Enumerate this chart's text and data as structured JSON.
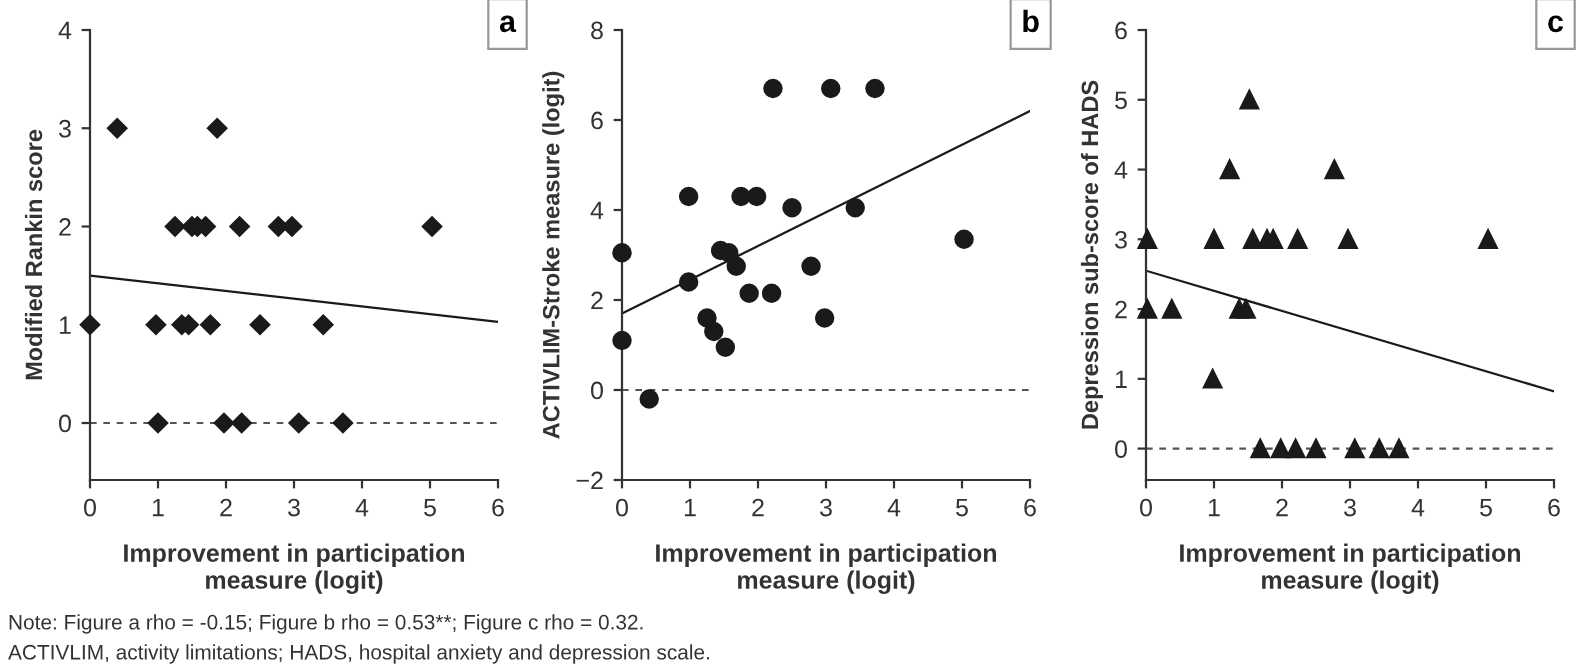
{
  "chart_data": [
    {
      "type": "scatter",
      "xlabel": "Improvement in participation\nmeasure (logit)",
      "ylabel": "Modified Rankin score",
      "xlim": [
        0,
        6
      ],
      "xticks": [
        0,
        1,
        2,
        3,
        4,
        5,
        6
      ],
      "ylim": [
        -0.58,
        4
      ],
      "yticks": [
        0,
        1,
        2,
        3,
        4
      ],
      "grid": false,
      "annotations": [
        "a",
        "Note: Figure a rho = -0.15; Figure b rho = 0.53**; Figure c rho = 0.32.",
        "ACTIVLIM, activity limitations; HADS, hospital anxiety and depression scale."
      ],
      "ref_lines": [
        {
          "axis": "y",
          "value": 0,
          "color": "#555555",
          "line_style": "dashed"
        }
      ],
      "series": [
        {
          "marker": "diamond",
          "color": "#1a1a1a",
          "x": [
            0,
            0.4,
            0.97,
            1.0,
            1.25,
            1.35,
            1.45,
            1.5,
            1.58,
            1.7,
            1.77,
            1.87,
            1.97,
            2.2,
            2.23,
            2.5,
            2.77,
            2.97,
            3.07,
            3.43,
            3.72,
            5.03
          ],
          "values": [
            1,
            3,
            1,
            0,
            2,
            1,
            1,
            2,
            2,
            2,
            1,
            3,
            0,
            2,
            0,
            1,
            2,
            2,
            0,
            1,
            0,
            2
          ]
        },
        {
          "type": "line",
          "marker": "none",
          "color": "#1a1a1a",
          "x": [
            0,
            6
          ],
          "values": [
            1.5,
            1.03
          ]
        }
      ]
    },
    {
      "type": "scatter",
      "xlabel": "Improvement in participation\nmeasure (logit)",
      "ylabel": "ACTIVLIM-Stroke measure (logit)",
      "xlim": [
        0,
        6
      ],
      "xticks": [
        0,
        1,
        2,
        3,
        4,
        5,
        6
      ],
      "ylim": [
        -2,
        8
      ],
      "yticks": [
        {
          "value": -2,
          "label": "−2"
        },
        0,
        2,
        4,
        6,
        8
      ],
      "grid": false,
      "annotations": [
        "b"
      ],
      "ref_lines": [
        {
          "axis": "y",
          "value": 0,
          "color": "#555555",
          "line_style": "dashed"
        }
      ],
      "series": [
        {
          "marker": "circle",
          "color": "#1a1a1a",
          "x": [
            0,
            0,
            0.4,
            0.98,
            0.98,
            1.25,
            1.35,
            1.45,
            1.52,
            1.57,
            1.68,
            1.75,
            1.87,
            1.98,
            2.2,
            2.22,
            2.5,
            2.78,
            2.98,
            3.07,
            3.43,
            3.72,
            5.03
          ],
          "values": [
            3.05,
            1.1,
            -0.2,
            4.3,
            2.4,
            1.6,
            1.3,
            3.1,
            0.95,
            3.05,
            2.75,
            4.3,
            2.15,
            4.3,
            2.15,
            6.7,
            4.05,
            2.75,
            1.6,
            6.7,
            4.05,
            6.7,
            3.35
          ]
        },
        {
          "type": "line",
          "marker": "none",
          "color": "#1a1a1a",
          "x": [
            0,
            6
          ],
          "values": [
            1.7,
            6.2
          ]
        }
      ]
    },
    {
      "type": "scatter",
      "xlabel": "Improvement in participation\nmeasure (logit)",
      "ylabel": "Depression sub-score of HADS",
      "xlim": [
        0,
        6
      ],
      "xticks": [
        0,
        1,
        2,
        3,
        4,
        5,
        6
      ],
      "ylim": [
        -0.45,
        6
      ],
      "yticks": [
        0,
        1,
        2,
        3,
        4,
        5,
        6
      ],
      "grid": false,
      "annotations": [
        "c"
      ],
      "ref_lines": [
        {
          "axis": "y",
          "value": 0,
          "color": "#555555",
          "line_style": "dashed"
        }
      ],
      "series": [
        {
          "marker": "triangle",
          "color": "#1a1a1a",
          "x": [
            0.02,
            0.02,
            0.38,
            0.98,
            1.0,
            1.23,
            1.37,
            1.47,
            1.52,
            1.57,
            1.68,
            1.78,
            1.87,
            1.98,
            2.2,
            2.23,
            2.5,
            2.77,
            2.97,
            3.07,
            3.43,
            3.72,
            5.03
          ],
          "values": [
            3,
            2,
            2,
            1,
            3,
            4,
            2,
            2,
            5,
            3,
            0,
            3,
            3,
            0,
            0,
            3,
            0,
            4,
            3,
            0,
            0,
            0,
            3
          ]
        },
        {
          "type": "line",
          "marker": "none",
          "color": "#1a1a1a",
          "x": [
            0,
            6
          ],
          "values": [
            2.55,
            0.82
          ]
        }
      ]
    }
  ]
}
